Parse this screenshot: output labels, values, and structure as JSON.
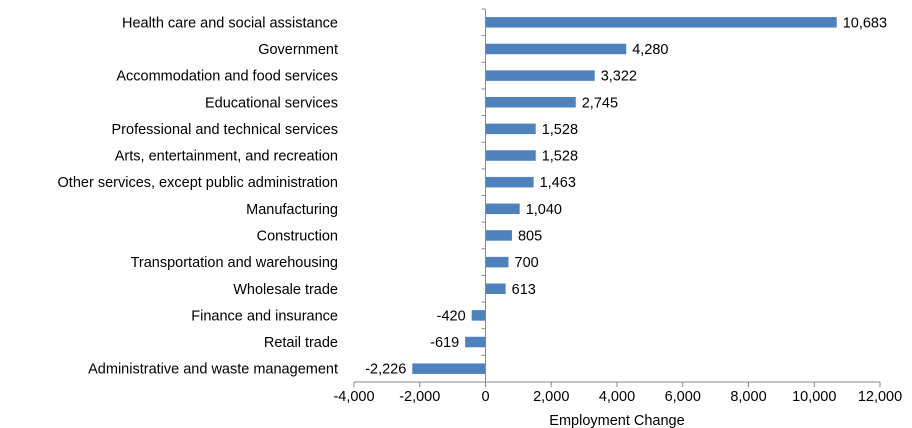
{
  "chart_data": {
    "type": "bar",
    "orientation": "horizontal",
    "xlabel": "Employment Change",
    "ylabel": "",
    "title": "",
    "xlim": [
      -4000,
      12000
    ],
    "x_ticks": [
      -4000,
      -2000,
      0,
      2000,
      4000,
      6000,
      8000,
      10000,
      12000
    ],
    "x_tick_labels": [
      "-4,000",
      "-2,000",
      "0",
      "2,000",
      "4,000",
      "6,000",
      "8,000",
      "10,000",
      "12,000"
    ],
    "grid": false,
    "legend": "none",
    "bar_color": "#4f81bd",
    "categories": [
      "Health care and social assistance",
      "Government",
      "Accommodation and food services",
      "Educational services",
      "Professional and technical services",
      "Arts, entertainment, and recreation",
      "Other services, except public administration",
      "Manufacturing",
      "Construction",
      "Transportation and warehousing",
      "Wholesale trade",
      "Finance and insurance",
      "Retail trade",
      "Administrative and waste management"
    ],
    "values": [
      10683,
      4280,
      3322,
      2745,
      1528,
      1528,
      1463,
      1040,
      805,
      700,
      613,
      -420,
      -619,
      -2226
    ],
    "value_labels": [
      "10,683",
      "4,280",
      "3,322",
      "2,745",
      "1,528",
      "1,528",
      "1,463",
      "1,040",
      "805",
      "700",
      "613",
      "-420",
      "-619",
      "-2,226"
    ]
  }
}
